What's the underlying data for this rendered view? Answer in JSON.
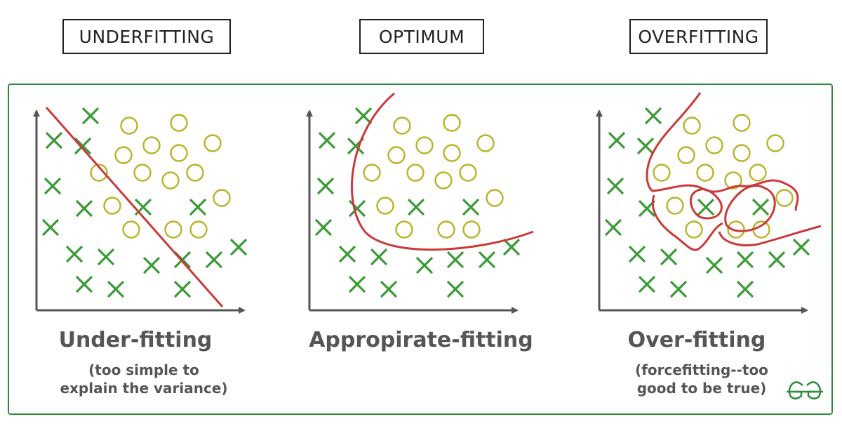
{
  "headers": {
    "underfitting": "UNDERFITTING",
    "optimum": "OPTIMUM",
    "overfitting": "OVERFITTING"
  },
  "captions": {
    "under": {
      "title": "Under-fitting",
      "line1": "(too simple to",
      "line2": "explain the variance)"
    },
    "appropriate": {
      "title": "Appropirate-fitting"
    },
    "over": {
      "title": "Over-fitting",
      "line1": "(forcefitting--too",
      "line2": "good to be true)"
    }
  },
  "colors": {
    "frame": "#2e8b3e",
    "cross": "#3a9a35",
    "circle": "#b8b42a",
    "fit_line": "#c93a3a",
    "axis": "#555555",
    "caption": "#555555"
  },
  "icons": {
    "logo": "gfg-logo-icon"
  }
}
